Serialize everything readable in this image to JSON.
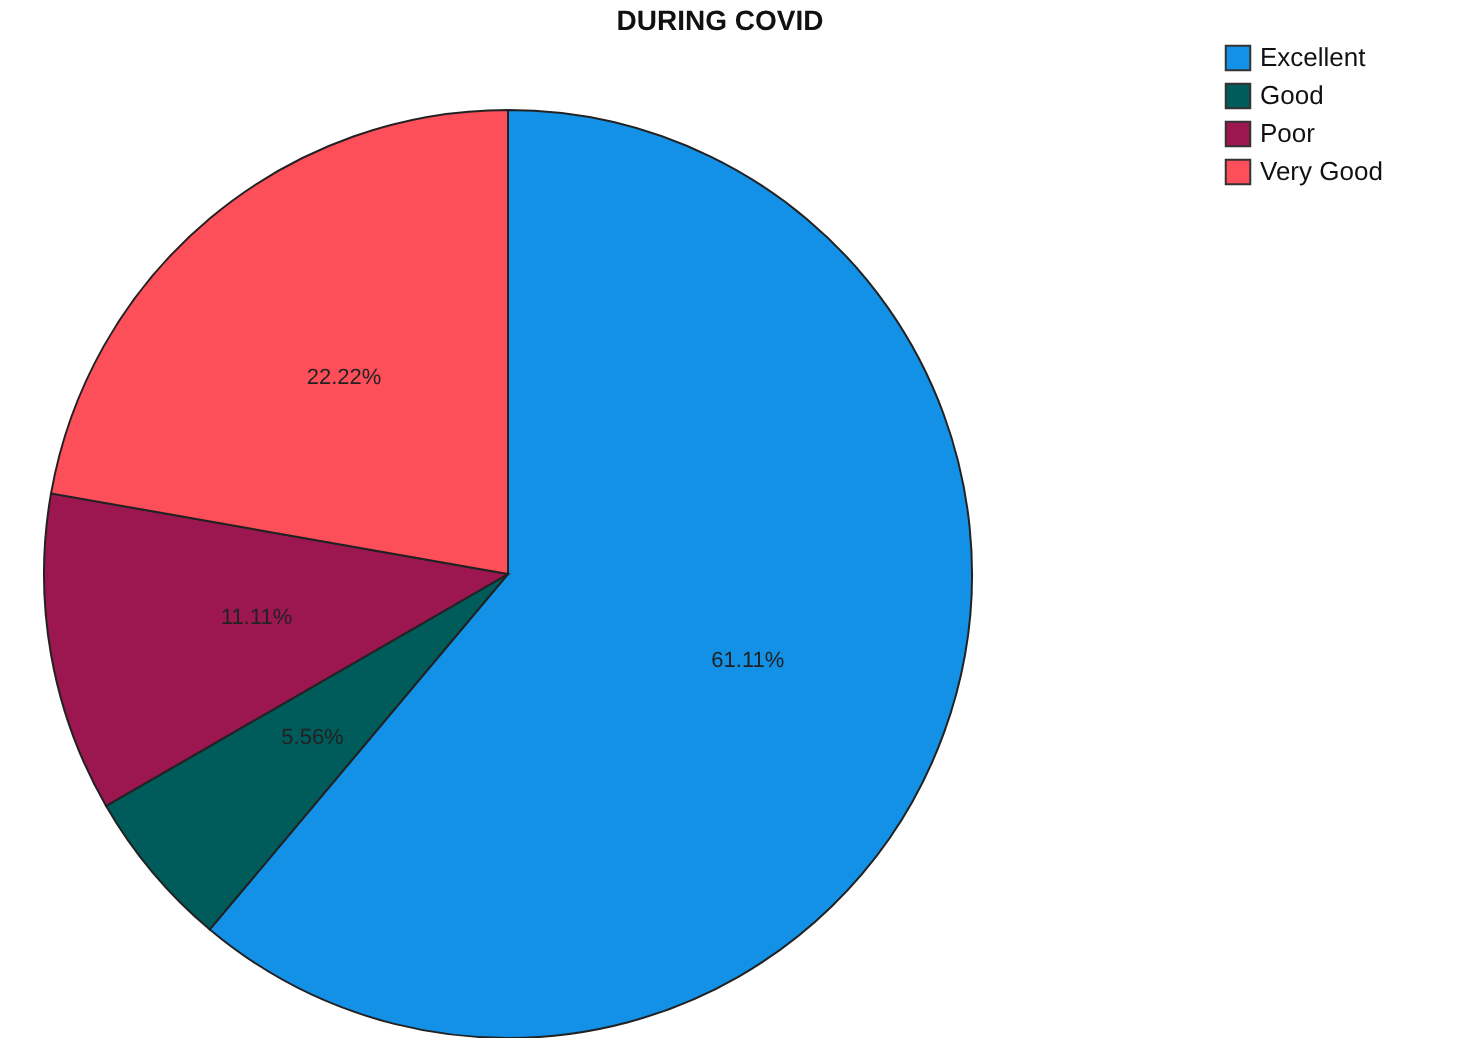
{
  "chart_data": {
    "type": "pie",
    "title": "DURING COVID",
    "categories": [
      "Excellent",
      "Good",
      "Poor",
      "Very Good"
    ],
    "values": [
      61.11,
      5.56,
      11.11,
      22.22
    ],
    "value_labels": [
      "61.11%",
      "5.56%",
      "11.11%",
      "22.22%"
    ],
    "colors": [
      "#1391e6",
      "#005b5b",
      "#9c1750",
      "#fd4f5a"
    ],
    "legend": "top right"
  }
}
